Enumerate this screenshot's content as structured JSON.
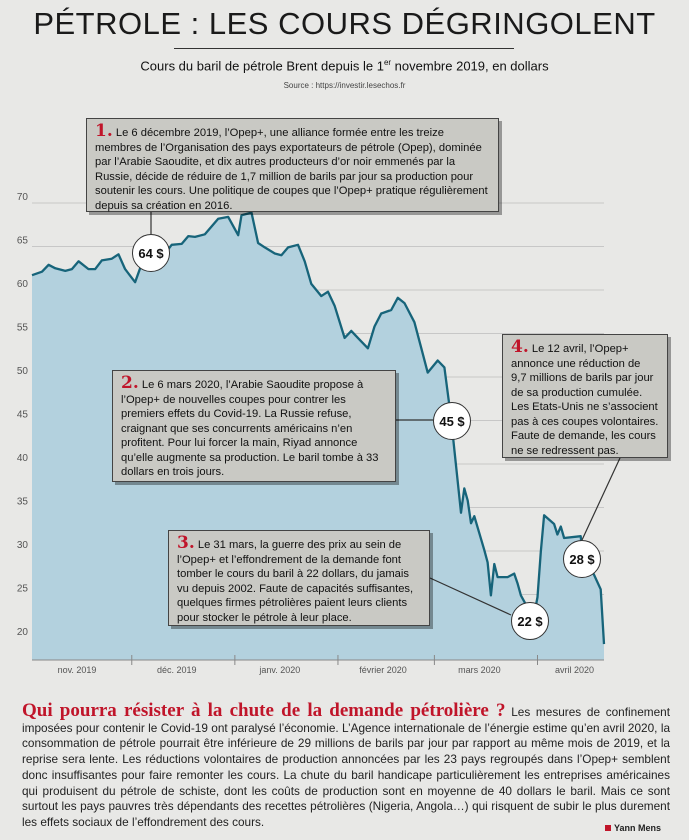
{
  "header": {
    "title": "PÉTROLE : LES COURS DÉGRINGOLENT",
    "subtitle_before": "Cours du baril de pétrole Brent depuis le 1",
    "subtitle_sup": "er",
    "subtitle_after": " novembre 2019, en dollars",
    "source": "Source : https://investir.lesechos.fr"
  },
  "chart_data": {
    "type": "area",
    "title": "Cours du baril de pétrole Brent depuis le 1er novembre 2019, en dollars",
    "ylim": [
      18,
      72
    ],
    "y_ticks": [
      20,
      25,
      30,
      35,
      40,
      45,
      50,
      55,
      60,
      65,
      70
    ],
    "x_tick_labels": [
      "nov. 2019",
      "déc. 2019",
      "janv. 2020",
      "février 2020",
      "mars 2020",
      "avril 2020"
    ],
    "colors": {
      "line": "#17647a",
      "fill": "#b3d1de"
    },
    "series": [
      {
        "x": [
          "2019-11-01",
          "2019-11-04",
          "2019-11-06",
          "2019-11-08",
          "2019-11-11",
          "2019-11-13",
          "2019-11-15",
          "2019-11-18",
          "2019-11-20",
          "2019-11-22",
          "2019-11-25",
          "2019-11-27",
          "2019-11-29",
          "2019-12-02",
          "2019-12-04",
          "2019-12-06",
          "2019-12-09",
          "2019-12-11",
          "2019-12-13",
          "2019-12-16",
          "2019-12-18",
          "2019-12-20",
          "2019-12-23",
          "2019-12-27",
          "2019-12-30",
          "2020-01-02",
          "2020-01-03",
          "2020-01-06",
          "2020-01-08",
          "2020-01-10",
          "2020-01-13",
          "2020-01-15",
          "2020-01-17",
          "2020-01-20",
          "2020-01-22",
          "2020-01-24",
          "2020-01-27",
          "2020-01-29",
          "2020-01-31",
          "2020-02-03",
          "2020-02-05",
          "2020-02-07",
          "2020-02-10",
          "2020-02-12",
          "2020-02-14",
          "2020-02-17",
          "2020-02-19",
          "2020-02-21",
          "2020-02-24",
          "2020-02-26",
          "2020-02-28",
          "2020-03-02",
          "2020-03-04",
          "2020-03-06",
          "2020-03-09",
          "2020-03-10",
          "2020-03-11",
          "2020-03-12",
          "2020-03-13",
          "2020-03-16",
          "2020-03-17",
          "2020-03-18",
          "2020-03-19",
          "2020-03-20",
          "2020-03-23",
          "2020-03-24",
          "2020-03-25",
          "2020-03-26",
          "2020-03-27",
          "2020-03-30",
          "2020-03-31",
          "2020-04-01",
          "2020-04-02",
          "2020-04-03",
          "2020-04-06",
          "2020-04-07",
          "2020-04-08",
          "2020-04-09",
          "2020-04-14",
          "2020-04-15",
          "2020-04-16",
          "2020-04-17",
          "2020-04-20",
          "2020-04-21"
        ],
        "values": [
          61.7,
          62.1,
          62.9,
          62.5,
          62.2,
          62.4,
          63.3,
          62.4,
          62.4,
          63.4,
          63.6,
          64.1,
          62.4,
          60.9,
          63.0,
          64.4,
          64.3,
          64.2,
          65.2,
          65.3,
          66.2,
          66.1,
          66.4,
          68.2,
          68.4,
          66.3,
          68.6,
          68.9,
          65.4,
          64.9,
          64.2,
          64.0,
          64.9,
          65.2,
          63.3,
          60.7,
          59.3,
          59.8,
          58.2,
          54.5,
          55.3,
          54.5,
          53.3,
          55.8,
          57.3,
          57.7,
          59.1,
          58.5,
          56.3,
          53.4,
          50.5,
          51.9,
          51.1,
          45.3,
          34.4,
          37.2,
          35.8,
          33.2,
          34.0,
          30.1,
          28.7,
          24.9,
          28.5,
          27.0,
          27.0,
          27.2,
          27.4,
          26.3,
          24.9,
          22.8,
          22.7,
          24.7,
          29.9,
          34.1,
          33.1,
          31.9,
          32.8,
          31.5,
          31.7,
          27.7,
          28.0,
          28.1,
          25.6,
          19.3
        ]
      }
    ],
    "bubbles": [
      {
        "label": "64 $"
      },
      {
        "label": "45 $"
      },
      {
        "label": "22 $"
      },
      {
        "label": "28 $"
      }
    ]
  },
  "annotations": [
    {
      "num": "1.",
      "text": "Le 6 décembre 2019, l’Opep+, une alliance formée entre les treize membres de l’Organisation des pays exportateurs de pétrole (Opep), dominée par l’Arabie Saoudite, et dix autres producteurs d’or noir emmenés par la Russie, décide de réduire de 1,7 million de barils par jour sa production pour soutenir les cours. Une politique de coupes que l’Opep+ pratique régulièrement depuis sa création en 2016."
    },
    {
      "num": "2.",
      "text": "Le 6 mars 2020, l’Arabie Saoudite propose à l’Opep+ de nouvelles coupes pour contrer les premiers effets du Covid-19. La Russie refuse, craignant que ses concurrents américains n’en profitent. Pour lui forcer la main, Riyad annonce qu’elle augmente sa production. Le baril tombe à 33 dollars en trois jours."
    },
    {
      "num": "3.",
      "text": "Le 31 mars, la guerre des prix au sein de l’Opep+ et l’effondrement de la demande font tomber le cours du baril à 22 dollars, du jamais vu depuis 2002. Faute de capacités suffisantes, quelques firmes pétrolières paient leurs clients pour stocker le pétrole à leur place."
    },
    {
      "num": "4.",
      "text": "Le 12 avril, l’Opep+ annonce une réduction de 9,7 millions de barils par jour de sa production cumulée. Les Etats-Unis ne s’associent pas à ces coupes volontaires. Faute de demande, les cours ne se redressent pas."
    }
  ],
  "article": {
    "lead": "Qui pourra résister à la chute de la demande pétrolière ?",
    "body": " Les mesures de confinement imposées pour contenir le Covid-19 ont paralysé l’économie. L’Agence internationale de l’énergie estime qu’en avril 2020, la consommation de pétrole pourrait être inférieure de 29 millions de barils par jour par rapport au même mois de 2019, et la reprise sera lente. Les réductions volontaires de production annoncées par les 23 pays regroupés dans l’Opep+ semblent donc insuffisantes pour faire remonter les cours. La chute du baril handicape particulièrement les entreprises américaines qui produisent du pétrole de schiste, dont les coûts de production sont en moyenne de 40 dollars le baril. Mais ce sont surtout les pays pauvres très dépendants des recettes pétrolières (Nigeria, Angola…) qui risquent de subir le plus durement les effets sociaux de l’effondrement des cours.",
    "credit": "Yann Mens"
  }
}
